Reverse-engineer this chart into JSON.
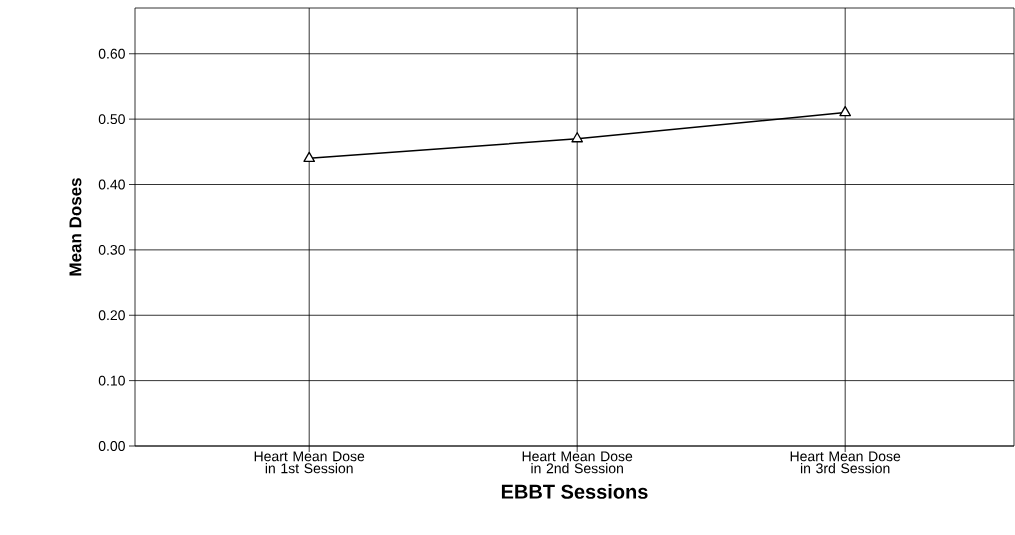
{
  "chart_data": {
    "type": "line",
    "xlabel": "EBBT Sessions",
    "ylabel": "Mean Doses",
    "categories": [
      "Heart Mean Dose in 1st Session",
      "Heart Mean Dose in 2nd Session",
      "Heart Mean Dose in 3rd Session"
    ],
    "values": [
      0.44,
      0.47,
      0.51
    ],
    "color": "#000000",
    "marker": "triangle",
    "line_style": "solid",
    "grid": true,
    "ylim": [
      0,
      0.67
    ],
    "yticks": [
      {
        "value": 0,
        "label": "0.00"
      },
      {
        "value": 0.1,
        "label": "0.10"
      },
      {
        "value": 0.2,
        "label": "0.20"
      },
      {
        "value": 0.3,
        "label": "0.30"
      },
      {
        "value": 0.4,
        "label": "0.40"
      },
      {
        "value": 0.5,
        "label": "0.50"
      },
      {
        "value": 0.6,
        "label": "0.60"
      }
    ]
  }
}
